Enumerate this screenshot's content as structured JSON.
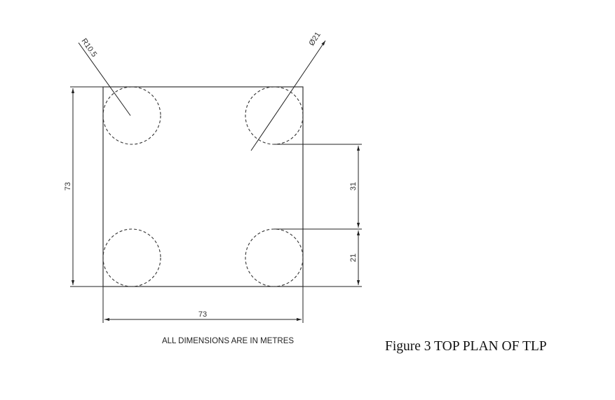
{
  "diagram": {
    "labels": {
      "radius": "R10.5",
      "diameter": "Ø21",
      "overall_height": "73",
      "overall_width": "73",
      "spacing_upper": "31",
      "spacing_lower": "21"
    },
    "note": "ALL DIMENSIONS ARE IN METRES"
  },
  "caption": "Figure 3 TOP PLAN OF TLP"
}
